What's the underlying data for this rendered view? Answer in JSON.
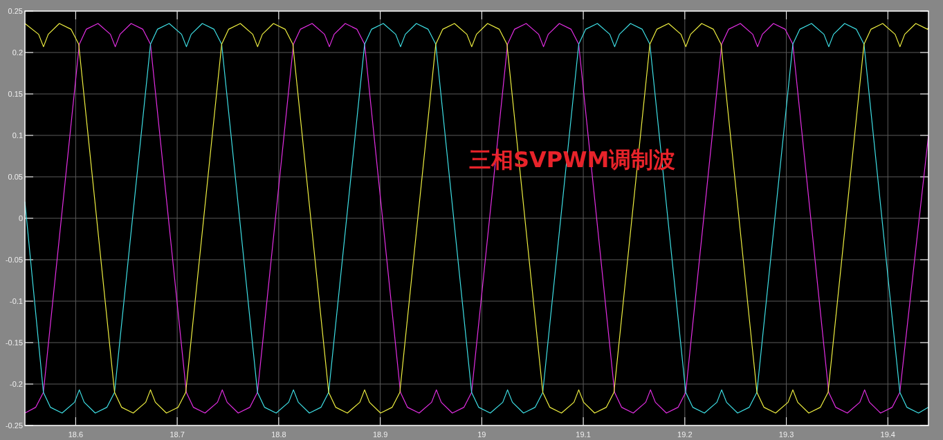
{
  "chart_data": {
    "type": "line",
    "xlim": [
      18.55,
      19.44
    ],
    "ylim": [
      -0.25,
      0.25
    ],
    "xticks": [
      18.6,
      18.7,
      18.8,
      18.9,
      19,
      19.1,
      19.2,
      19.3,
      19.4
    ],
    "yticks": [
      -0.25,
      -0.2,
      -0.15,
      -0.1,
      -0.05,
      0,
      0.05,
      0.1,
      0.15,
      0.2,
      0.25
    ],
    "grid": true,
    "annotations": [
      "三相SVPWM调制波"
    ],
    "series": [
      {
        "color": "#e42ee4",
        "x": [
          18.55,
          18.5607,
          18.5682,
          18.6036,
          18.6104,
          18.622,
          18.6342,
          18.639,
          18.6437,
          18.6546,
          18.6662,
          18.6737,
          18.709,
          18.7159,
          18.7274,
          18.7397,
          18.7444,
          18.7492,
          18.7601,
          18.7716,
          18.7791,
          18.8145,
          18.8213,
          18.8329,
          18.8451,
          18.8499,
          18.8546,
          18.8655,
          18.8771,
          18.8846,
          18.9199,
          18.9268,
          18.9383,
          18.9506,
          18.9553,
          18.9601,
          18.971,
          18.9825,
          18.99,
          19.0254,
          19.0322,
          19.0438,
          19.056,
          19.0608,
          19.0655,
          19.0764,
          19.088,
          19.0955,
          19.1308,
          19.1377,
          19.1492,
          19.1615,
          19.1662,
          19.171,
          19.1819,
          19.1934,
          19.2009,
          19.2363,
          19.2431,
          19.2547,
          19.2669,
          19.2717,
          19.2764,
          19.2873,
          19.2989,
          19.3064,
          19.3417,
          19.3486,
          19.3601,
          19.3724,
          19.3771,
          19.3819,
          19.3928,
          19.4043,
          19.4118,
          19.44
        ],
        "values": [
          -0.235,
          -0.228,
          -0.21,
          0.21,
          0.228,
          0.235,
          0.222,
          0.207,
          0.222,
          0.235,
          0.228,
          0.21,
          -0.21,
          -0.228,
          -0.235,
          -0.222,
          -0.207,
          -0.222,
          -0.235,
          -0.228,
          -0.21,
          0.21,
          0.228,
          0.235,
          0.222,
          0.207,
          0.222,
          0.235,
          0.228,
          0.21,
          -0.21,
          -0.228,
          -0.235,
          -0.222,
          -0.207,
          -0.222,
          -0.235,
          -0.228,
          -0.21,
          0.21,
          0.228,
          0.235,
          0.222,
          0.207,
          0.222,
          0.235,
          0.228,
          0.21,
          -0.21,
          -0.228,
          -0.235,
          -0.222,
          -0.207,
          -0.222,
          -0.235,
          -0.228,
          -0.21,
          0.21,
          0.228,
          0.235,
          0.222,
          0.207,
          0.222,
          0.235,
          0.228,
          0.21,
          -0.21,
          -0.228,
          -0.235,
          -0.222,
          -0.207,
          -0.222,
          -0.235,
          -0.228,
          -0.21,
          0.1
        ]
      },
      {
        "color": "#3ee0e6",
        "x": [
          18.55,
          18.5682,
          18.5751,
          18.5866,
          18.5989,
          18.6036,
          18.6084,
          18.6193,
          18.6308,
          18.6383,
          18.6737,
          18.6805,
          18.6921,
          18.7043,
          18.7091,
          18.7138,
          18.7247,
          18.7363,
          18.7438,
          18.7791,
          18.786,
          18.7975,
          18.8098,
          18.8145,
          18.8193,
          18.8302,
          18.8417,
          18.8492,
          18.8846,
          18.8914,
          18.903,
          18.9152,
          18.92,
          18.9247,
          18.9356,
          18.9472,
          18.9547,
          18.99,
          18.9969,
          19.0084,
          19.0207,
          19.0254,
          19.0302,
          19.0411,
          19.0526,
          19.0601,
          19.0955,
          19.1023,
          19.1139,
          19.1261,
          19.1309,
          19.1356,
          19.1465,
          19.1581,
          19.1656,
          19.2009,
          19.2078,
          19.2193,
          19.2316,
          19.2363,
          19.2411,
          19.252,
          19.2635,
          19.271,
          19.3064,
          19.3132,
          19.3248,
          19.337,
          19.3418,
          19.3465,
          19.3574,
          19.369,
          19.3765,
          19.4118,
          19.4187,
          19.4302,
          19.44
        ],
        "values": [
          0.02,
          -0.21,
          -0.228,
          -0.235,
          -0.222,
          -0.207,
          -0.222,
          -0.235,
          -0.228,
          -0.21,
          0.21,
          0.228,
          0.235,
          0.222,
          0.207,
          0.222,
          0.235,
          0.228,
          0.21,
          -0.21,
          -0.228,
          -0.235,
          -0.222,
          -0.207,
          -0.222,
          -0.235,
          -0.228,
          -0.21,
          0.21,
          0.228,
          0.235,
          0.222,
          0.207,
          0.222,
          0.235,
          0.228,
          0.21,
          -0.21,
          -0.228,
          -0.235,
          -0.222,
          -0.207,
          -0.222,
          -0.235,
          -0.228,
          -0.21,
          0.21,
          0.228,
          0.235,
          0.222,
          0.207,
          0.222,
          0.235,
          0.228,
          0.21,
          -0.21,
          -0.228,
          -0.235,
          -0.222,
          -0.207,
          -0.222,
          -0.235,
          -0.228,
          -0.21,
          0.21,
          0.228,
          0.235,
          0.222,
          0.207,
          0.222,
          0.235,
          0.228,
          0.21,
          -0.21,
          -0.228,
          -0.235,
          -0.228
        ]
      },
      {
        "color": "#f0f040",
        "x": [
          18.55,
          18.5635,
          18.5683,
          18.573,
          18.5839,
          18.5955,
          18.603,
          18.6383,
          18.6452,
          18.6567,
          18.669,
          18.6737,
          18.6785,
          18.6894,
          18.7009,
          18.7084,
          18.7438,
          18.7506,
          18.7622,
          18.7744,
          18.7792,
          18.7839,
          18.7948,
          18.8064,
          18.8139,
          18.8492,
          18.8561,
          18.8676,
          18.8799,
          18.8846,
          18.8894,
          18.9003,
          18.9118,
          18.9193,
          18.9547,
          18.9615,
          18.9731,
          18.9853,
          18.9901,
          18.9948,
          19.0057,
          19.0173,
          19.0248,
          19.0601,
          19.067,
          19.0785,
          19.0908,
          19.0955,
          19.1003,
          19.1112,
          19.1227,
          19.1302,
          19.1656,
          19.1724,
          19.184,
          19.1962,
          19.201,
          19.2057,
          19.2166,
          19.2282,
          19.2357,
          19.271,
          19.2779,
          19.2894,
          19.3017,
          19.3064,
          19.3112,
          19.3221,
          19.3336,
          19.3411,
          19.3765,
          19.3833,
          19.3949,
          19.4071,
          19.4119,
          19.4166,
          19.4275,
          19.4391,
          19.44
        ],
        "values": [
          0.235,
          0.222,
          0.207,
          0.222,
          0.235,
          0.228,
          0.21,
          -0.21,
          -0.228,
          -0.235,
          -0.222,
          -0.207,
          -0.222,
          -0.235,
          -0.228,
          -0.21,
          0.21,
          0.228,
          0.235,
          0.222,
          0.207,
          0.222,
          0.235,
          0.228,
          0.21,
          -0.21,
          -0.228,
          -0.235,
          -0.222,
          -0.207,
          -0.222,
          -0.235,
          -0.228,
          -0.21,
          0.21,
          0.228,
          0.235,
          0.222,
          0.207,
          0.222,
          0.235,
          0.228,
          0.21,
          -0.21,
          -0.228,
          -0.235,
          -0.222,
          -0.207,
          -0.222,
          -0.235,
          -0.228,
          -0.21,
          0.21,
          0.228,
          0.235,
          0.222,
          0.207,
          0.222,
          0.235,
          0.228,
          0.21,
          -0.21,
          -0.228,
          -0.235,
          -0.222,
          -0.207,
          -0.222,
          -0.235,
          -0.228,
          -0.21,
          0.21,
          0.228,
          0.235,
          0.222,
          0.207,
          0.222,
          0.235,
          0.228,
          0.23
        ]
      }
    ]
  }
}
